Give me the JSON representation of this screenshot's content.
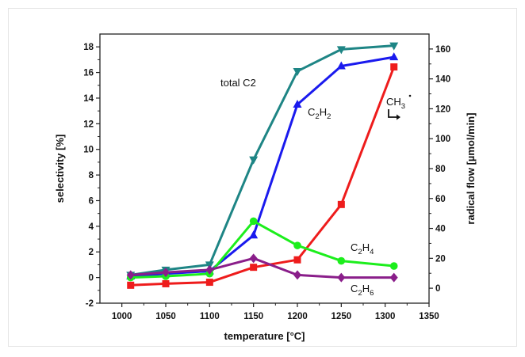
{
  "chart_data": {
    "type": "line",
    "xlabel": "temperature [°C]",
    "ylabel_left": "selectivity [%]",
    "ylabel_right": "radical flow [µmol/min]",
    "xlim": [
      975,
      1350
    ],
    "x_ticks": [
      1000,
      1050,
      1100,
      1150,
      1200,
      1250,
      1300,
      1350
    ],
    "ylim_left": [
      -2,
      19
    ],
    "y_ticks_left": [
      -2,
      0,
      2,
      4,
      6,
      8,
      10,
      12,
      14,
      16,
      18
    ],
    "ylim_right": [
      -10,
      170
    ],
    "y_ticks_right": [
      0,
      20,
      40,
      60,
      80,
      100,
      120,
      140,
      160
    ],
    "grid": false,
    "legend": "none",
    "series": [
      {
        "label_parts": [
          {
            "text": "total C2",
            "sub": false
          }
        ],
        "color": "#1e8585",
        "marker": "triangle-down",
        "axis": "left",
        "x": [
          1010,
          1050,
          1100,
          1150,
          1200,
          1250,
          1310
        ],
        "values": [
          0.2,
          0.6,
          1.0,
          9.2,
          16.1,
          17.8,
          18.1
        ]
      },
      {
        "label_parts": [
          {
            "text": "C",
            "sub": false
          },
          {
            "text": "2",
            "sub": true
          },
          {
            "text": "H",
            "sub": false
          },
          {
            "text": "2",
            "sub": true
          }
        ],
        "color": "#1a1aee",
        "marker": "triangle-up",
        "axis": "left",
        "x": [
          1010,
          1050,
          1100,
          1150,
          1200,
          1250,
          1310
        ],
        "values": [
          0.1,
          0.3,
          0.5,
          3.3,
          13.5,
          16.5,
          17.2
        ]
      },
      {
        "label_parts": [
          {
            "text": "CH",
            "sub": false
          },
          {
            "text": "3",
            "sub": true
          }
        ],
        "color": "#ee1c1c",
        "marker": "square",
        "axis": "right",
        "x": [
          1010,
          1050,
          1100,
          1150,
          1200,
          1250,
          1310
        ],
        "values": [
          2,
          3,
          4,
          14,
          19,
          56,
          148
        ]
      },
      {
        "label_parts": [
          {
            "text": "C",
            "sub": false
          },
          {
            "text": "2",
            "sub": true
          },
          {
            "text": "H",
            "sub": false
          },
          {
            "text": "4",
            "sub": true
          }
        ],
        "color": "#1cee1c",
        "marker": "circle",
        "axis": "left",
        "x": [
          1010,
          1050,
          1100,
          1150,
          1200,
          1250,
          1310
        ],
        "values": [
          0.0,
          0.1,
          0.3,
          4.4,
          2.5,
          1.3,
          0.9
        ]
      },
      {
        "label_parts": [
          {
            "text": "C",
            "sub": false
          },
          {
            "text": "2",
            "sub": true
          },
          {
            "text": "H",
            "sub": false
          },
          {
            "text": "6",
            "sub": true
          }
        ],
        "color": "#8a1e8a",
        "marker": "diamond",
        "axis": "left",
        "x": [
          1010,
          1050,
          1100,
          1150,
          1200,
          1250,
          1310
        ],
        "values": [
          0.2,
          0.4,
          0.6,
          1.5,
          0.2,
          0.0,
          0.0
        ]
      }
    ]
  }
}
